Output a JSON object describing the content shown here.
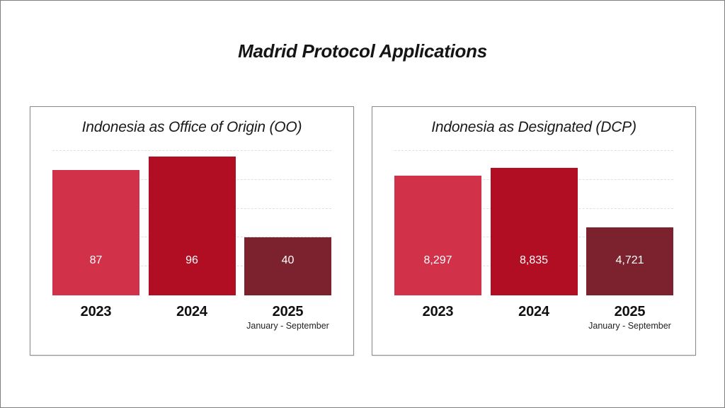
{
  "page": {
    "title": "Madrid Protocol Applications"
  },
  "colors": {
    "bar_2023": "#d23249",
    "bar_2024": "#b10e23",
    "bar_2025": "#7b222e",
    "gridline": "#e0e0e0",
    "card_border": "#8a8a8a",
    "page_border": "#7f7f7f",
    "value_label_text": "#ffffff",
    "title_text": "#151515"
  },
  "chart_data": [
    {
      "type": "bar",
      "title": "Indonesia as Office of Origin (OO)",
      "categories": [
        "2023",
        "2024",
        "2025"
      ],
      "category_sublabels": [
        "",
        "",
        "January - September"
      ],
      "values": [
        87,
        96,
        40
      ],
      "value_labels": [
        "87",
        "96",
        "40"
      ],
      "bar_colors": [
        "#d23249",
        "#b10e23",
        "#7b222e"
      ],
      "xlabel": "",
      "ylabel": "",
      "ylim": [
        0,
        100
      ],
      "gridlines": [
        20,
        40,
        60,
        80,
        100
      ],
      "grid_style": "horizontal-dashed",
      "legend": "none"
    },
    {
      "type": "bar",
      "title": "Indonesia as Designated (DCP)",
      "categories": [
        "2023",
        "2024",
        "2025"
      ],
      "category_sublabels": [
        "",
        "",
        "January - September"
      ],
      "values": [
        8297,
        8835,
        4721
      ],
      "value_labels": [
        "8,297",
        "8,835",
        "4,721"
      ],
      "bar_colors": [
        "#d23249",
        "#b10e23",
        "#7b222e"
      ],
      "xlabel": "",
      "ylabel": "",
      "ylim": [
        0,
        10000
      ],
      "gridlines": [
        2000,
        4000,
        6000,
        8000,
        10000
      ],
      "grid_style": "horizontal-dashed",
      "legend": "none"
    }
  ]
}
